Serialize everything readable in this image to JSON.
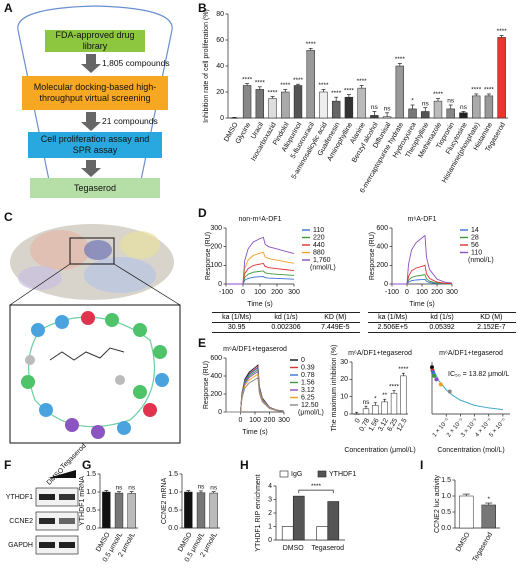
{
  "panel_labels": [
    "A",
    "B",
    "C",
    "D",
    "E",
    "F",
    "G",
    "H",
    "I"
  ],
  "flowchart": {
    "steps": [
      "FDA-approved drug library",
      "Molecular docking-based high-throughput virtual screening",
      "Cell proliferation assay and SPR assay",
      "Tegaserod"
    ],
    "arrows": [
      "1,805 compounds",
      "21 compounds"
    ]
  },
  "blot": {
    "lanes": [
      "DMSO",
      "Tegaserod"
    ],
    "rows": [
      "YTHDF1",
      "CCNE2",
      "GAPDH"
    ]
  },
  "kinetics_tables": [
    {
      "header": [
        "ka (1/Ms)",
        "kd (1/s)",
        "KD (M)"
      ],
      "row": [
        "30.95",
        "0.002306",
        "7.449E-5"
      ]
    },
    {
      "header": [
        "ka (1/Ms)",
        "kd (1/s)",
        "KD (M)"
      ],
      "row": [
        "2.506E+5",
        "0.05392",
        "2.152E-7"
      ]
    }
  ],
  "chart_data": [
    {
      "type": "bar",
      "ylabel": "Inhibition rate of cell proliferation (%)",
      "categories": [
        "DMSO",
        "Glycine",
        "Uracil",
        "Isocarboxazid",
        "Pindolol",
        "Allopurinol",
        "5-fluorouracil",
        "5-aminosalicylic acid",
        "Guaifenesin",
        "Aminophylline",
        "Alanine",
        "Benzyl alcohol",
        "Diflunisal",
        "6-mercaptopurine hydrate",
        "Hydroxyurea",
        "Theophylline",
        "Methimazole",
        "Tiopronin",
        "Flucytosine",
        "Histamine(phosphate)",
        "Histamine",
        "Tegaserod"
      ],
      "values": [
        0,
        25,
        22,
        15,
        20,
        25,
        52,
        20,
        13,
        16,
        23,
        2,
        1,
        40,
        7,
        5,
        13,
        7,
        4,
        17,
        17,
        62
      ],
      "errors": [
        0.5,
        1.5,
        2,
        1.5,
        2,
        1,
        1.5,
        2,
        3,
        2,
        2,
        3,
        3,
        2,
        3,
        3,
        2,
        3,
        1,
        1.5,
        1.5,
        1.5
      ],
      "annotations": [
        null,
        "****",
        "****",
        "****",
        "****",
        "****",
        "****",
        "****",
        "****",
        "****",
        "****",
        "ns",
        "ns",
        "****",
        "*",
        "ns",
        "****",
        "ns",
        "ns",
        "****",
        "****",
        "****"
      ],
      "colors": [
        "#f0f0f0",
        "#888888",
        "#777777",
        "#dddddd",
        "#aaaaaa",
        "#555555",
        "#999999",
        "#eeeeee",
        "#666666",
        "#333333",
        "#bbbbbb",
        "#444444",
        "#cccccc",
        "#999999",
        "#777777",
        "#555555",
        "#bbbbbb",
        "#888888",
        "#222222",
        "#aaaaaa",
        "#999999",
        "#e8362b"
      ],
      "ylim": [
        0,
        80
      ],
      "yticks": [
        0,
        20,
        40,
        60,
        80
      ]
    },
    {
      "type": "line",
      "title": "non-m⁶A-DF1",
      "xlabel": "Time (s)",
      "ylabel": "Response (RU)",
      "legend_unit": "(nmol/L)",
      "x": [
        -100,
        -10,
        0,
        10,
        30,
        60,
        100,
        120,
        130,
        150,
        200,
        250,
        300
      ],
      "series": [
        {
          "name": "110",
          "color": "#3a6fd8",
          "values": [
            0,
            0,
            0,
            20,
            30,
            36,
            39,
            40,
            34,
            32,
            30,
            28,
            26
          ]
        },
        {
          "name": "220",
          "color": "#3a9a3a",
          "values": [
            0,
            0,
            0,
            35,
            52,
            63,
            68,
            70,
            60,
            56,
            52,
            49,
            46
          ]
        },
        {
          "name": "440",
          "color": "#e03030",
          "values": [
            0,
            0,
            0,
            55,
            82,
            99,
            107,
            110,
            94,
            88,
            82,
            77,
            72
          ]
        },
        {
          "name": "880",
          "color": "#f0a020",
          "values": [
            0,
            0,
            0,
            85,
            128,
            153,
            165,
            170,
            145,
            136,
            128,
            119,
            111
          ]
        },
        {
          "name": "1,760",
          "color": "#8a4fc0",
          "values": [
            0,
            0,
            0,
            125,
            188,
            225,
            243,
            250,
            213,
            200,
            188,
            175,
            163
          ]
        }
      ],
      "xlim": [
        -100,
        300
      ],
      "xticks": [
        -100,
        0,
        100,
        200,
        300
      ],
      "ylim": [
        0,
        300
      ],
      "yticks": [
        0,
        100,
        200,
        300
      ]
    },
    {
      "type": "line",
      "title": "m⁶A-DF1",
      "xlabel": "Time (s)",
      "ylabel": "Response (RU)",
      "legend_unit": "(nmol/L)",
      "x": [
        -100,
        -10,
        0,
        10,
        30,
        60,
        100,
        120,
        130,
        150,
        200,
        250,
        300
      ],
      "series": [
        {
          "name": "14",
          "color": "#3a6fd8",
          "values": [
            0,
            0,
            0,
            20,
            35,
            43,
            48,
            50,
            28,
            15,
            5,
            2,
            1
          ]
        },
        {
          "name": "28",
          "color": "#3a9a3a",
          "values": [
            0,
            0,
            0,
            40,
            70,
            85,
            95,
            100,
            55,
            30,
            10,
            4,
            2
          ]
        },
        {
          "name": "56",
          "color": "#e03030",
          "values": [
            0,
            0,
            0,
            80,
            140,
            170,
            190,
            200,
            110,
            60,
            20,
            8,
            4
          ]
        },
        {
          "name": "110",
          "color": "#8a4fc0",
          "values": [
            0,
            0,
            0,
            208,
            364,
            442,
            494,
            520,
            286,
            156,
            52,
            21,
            10
          ]
        }
      ],
      "xlim": [
        -100,
        300
      ],
      "xticks": [
        -100,
        0,
        100,
        200,
        300
      ],
      "ylim": [
        0,
        600
      ],
      "yticks": [
        0,
        200,
        400,
        600
      ]
    },
    {
      "type": "line",
      "title": "m⁶A/DF1+tegaserod",
      "xlabel": "Time (s)",
      "ylabel": "Response (RU)",
      "legend_unit": "(μmol/L)",
      "x": [
        -100,
        -10,
        0,
        10,
        30,
        60,
        100,
        120,
        130,
        150,
        200,
        250,
        300
      ],
      "series": [
        {
          "name": "0",
          "color": "#111111",
          "values": [
            0,
            0,
            0,
            208,
            364,
            442,
            494,
            520,
            286,
            156,
            52,
            21,
            10
          ]
        },
        {
          "name": "0.39",
          "color": "#e03030",
          "values": [
            0,
            0,
            0,
            200,
            350,
            425,
            475,
            500,
            275,
            150,
            50,
            20,
            10
          ]
        },
        {
          "name": "0.78",
          "color": "#3a6fd8",
          "values": [
            0,
            0,
            0,
            196,
            343,
            417,
            466,
            490,
            270,
            147,
            49,
            20,
            10
          ]
        },
        {
          "name": "1.56",
          "color": "#3a9a3a",
          "values": [
            0,
            0,
            0,
            188,
            329,
            400,
            447,
            470,
            259,
            141,
            47,
            19,
            9
          ]
        },
        {
          "name": "3.12",
          "color": "#8a4fc0",
          "values": [
            0,
            0,
            0,
            180,
            315,
            383,
            428,
            450,
            248,
            135,
            45,
            18,
            9
          ]
        },
        {
          "name": "6.25",
          "color": "#f0a020",
          "values": [
            0,
            0,
            0,
            168,
            294,
            357,
            399,
            420,
            231,
            126,
            42,
            17,
            8
          ]
        },
        {
          "name": "12.50",
          "color": "#888888",
          "values": [
            0,
            0,
            0,
            152,
            266,
            323,
            361,
            380,
            209,
            114,
            38,
            15,
            8
          ]
        }
      ],
      "xlim": [
        -100,
        300
      ],
      "xticks": [
        0,
        100,
        200,
        300
      ],
      "ylim": [
        0,
        600
      ],
      "yticks": [
        0,
        200,
        400,
        600
      ]
    },
    {
      "type": "bar",
      "title": "m⁶A/DF1+tegaserod",
      "ylabel": "The maximum inhibition (%)",
      "xlabel": "Concentration (μmol/L)",
      "categories": [
        "0",
        "0.78",
        "1.56",
        "3.12",
        "6.25",
        "12.5"
      ],
      "values": [
        0,
        3,
        5,
        7,
        12,
        22
      ],
      "errors": [
        1,
        1.5,
        1.5,
        1.5,
        1.5,
        1.5
      ],
      "annotations": [
        null,
        "ns",
        "*",
        "**",
        "****",
        "****"
      ],
      "colors": [
        "#ffffff",
        "#ffffff",
        "#ffffff",
        "#ffffff",
        "#ffffff",
        "#ffffff"
      ],
      "ylim": [
        0,
        30
      ],
      "yticks": [
        0,
        10,
        20,
        30
      ]
    },
    {
      "type": "scatter",
      "title": "m⁶A/DF1+tegaserod",
      "xlabel": "Concentration (mol/L)",
      "annotation": "IC₅₀ = 13.82 μmol/L",
      "x": [
        0,
        3.9e-07,
        7.8e-07,
        1.56e-06,
        3.12e-06,
        6.25e-06,
        1.25e-05
      ],
      "values": [
        520,
        500,
        490,
        470,
        450,
        420,
        380
      ],
      "point_colors": [
        "#111111",
        "#e03030",
        "#3a6fd8",
        "#3a9a3a",
        "#8a4fc0",
        "#f0a020",
        "#888888"
      ],
      "curve": {
        "x": [
          0,
          5e-06,
          1e-05,
          1.5e-05,
          2e-05,
          3e-05,
          4e-05,
          5e-05
        ],
        "values": [
          520,
          440,
          390,
          355,
          330,
          300,
          285,
          275
        ],
        "color": "#3fa9c9"
      },
      "xlim": [
        0,
        5.5e-05
      ],
      "xticks": [
        {
          "value": 1e-05,
          "label": "1 × 10⁻⁵"
        },
        {
          "value": 2e-05,
          "label": "2 × 10⁻⁵"
        },
        {
          "value": 3e-05,
          "label": "3 × 10⁻⁵"
        },
        {
          "value": 4e-05,
          "label": "4 × 10⁻⁵"
        },
        {
          "value": 5e-05,
          "label": "5 × 10⁻⁵"
        }
      ],
      "ylim": [
        250,
        550
      ]
    },
    {
      "type": "bar",
      "ylabel": "YTHDF1 mRNA",
      "categories": [
        "DMSO",
        "0.5 μmol/L",
        "2 μmol/L"
      ],
      "values": [
        1.0,
        0.97,
        0.96
      ],
      "errors": [
        0.04,
        0.04,
        0.05
      ],
      "annotations": [
        null,
        "ns",
        "ns"
      ],
      "colors": [
        "#111111",
        "#777777",
        "#bbbbbb"
      ],
      "ylim": [
        0,
        1.5
      ],
      "yticks": [
        {
          "value": 0,
          "label": "0.0"
        },
        0.5,
        {
          "value": 1,
          "label": "1.0"
        },
        1.5
      ]
    },
    {
      "type": "bar",
      "ylabel": "CCNE2 mRNA",
      "categories": [
        "DMSO",
        "0.5 μmol/L",
        "2 μmol/L"
      ],
      "values": [
        1.0,
        0.98,
        0.97
      ],
      "errors": [
        0.04,
        0.05,
        0.04
      ],
      "annotations": [
        null,
        "ns",
        "ns"
      ],
      "colors": [
        "#111111",
        "#777777",
        "#bbbbbb"
      ],
      "ylim": [
        0,
        1.5
      ],
      "yticks": [
        {
          "value": 0,
          "label": "0.0"
        },
        0.5,
        {
          "value": 1,
          "label": "1.0"
        },
        1.5
      ]
    },
    {
      "type": "grouped_bar",
      "ylabel": "YTHDF1 RIP enrichment",
      "categories": [
        "DMSO",
        "Tegaserod"
      ],
      "series": [
        {
          "name": "IgG",
          "color": "#ffffff",
          "values": [
            1.0,
            1.0
          ]
        },
        {
          "name": "YTHDF1",
          "color": "#555555",
          "values": [
            3.25,
            2.85
          ]
        }
      ],
      "annotation": "****",
      "ylim": [
        0,
        4
      ],
      "yticks": [
        0,
        1,
        2,
        3,
        4
      ]
    },
    {
      "type": "bar",
      "ylabel": "CCNE2 luc activity",
      "categories": [
        "DMSO",
        "Tegaserod"
      ],
      "values": [
        1.0,
        0.72
      ],
      "errors": [
        0.06,
        0.06
      ],
      "annotations": [
        null,
        "*"
      ],
      "colors": [
        "#ffffff",
        "#777777"
      ],
      "ylim": [
        0,
        1.5
      ],
      "yticks": [
        {
          "value": 0,
          "label": "0.0"
        },
        0.5,
        {
          "value": 1,
          "label": "1.0"
        },
        1.5
      ]
    }
  ]
}
